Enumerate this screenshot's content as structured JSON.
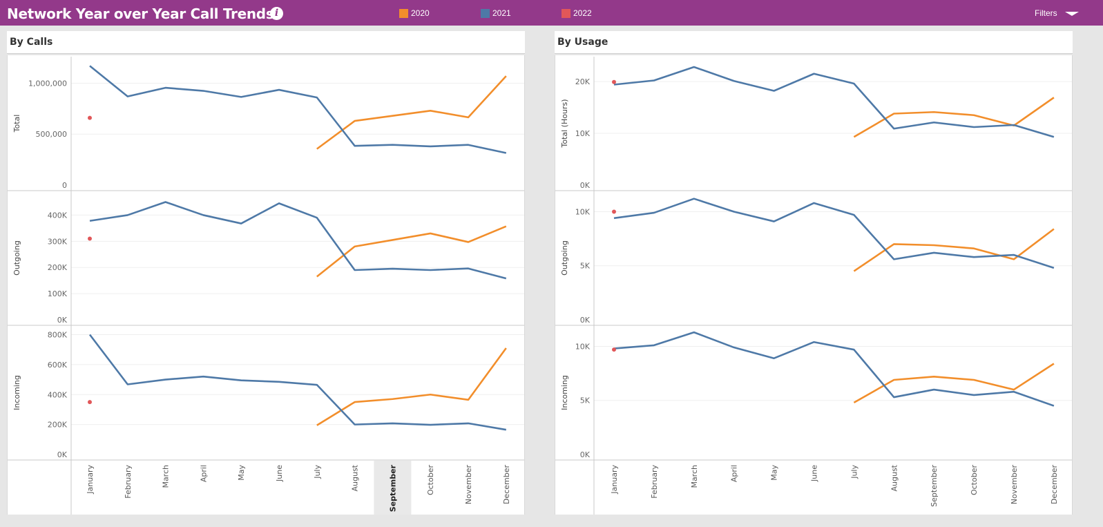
{
  "header": {
    "title": "Network Year over Year Call Trends",
    "info_icon": "info-icon",
    "filters_label": "Filters",
    "legend": [
      {
        "label": "2020",
        "color": "#f28e2b"
      },
      {
        "label": "2021",
        "color": "#4e79a7"
      },
      {
        "label": "2022",
        "color": "#e15759"
      }
    ]
  },
  "panels": [
    {
      "title": "By Calls"
    },
    {
      "title": "By Usage"
    }
  ],
  "chart_data": [
    {
      "type": "line",
      "title": "By Calls",
      "ylabel": "Total",
      "ylim": [
        0,
        1220000
      ],
      "yticks": [
        0,
        500000,
        1000000
      ],
      "ytick_labels": [
        "0",
        "500,000",
        "1,000,000"
      ],
      "categories": [
        "January",
        "February",
        "March",
        "April",
        "May",
        "June",
        "July",
        "August",
        "September",
        "October",
        "November",
        "December"
      ],
      "series": [
        {
          "name": "2020",
          "values": [
            null,
            null,
            null,
            null,
            null,
            null,
            355000,
            630000,
            680000,
            730000,
            665000,
            1070000
          ]
        },
        {
          "name": "2021",
          "values": [
            1170000,
            870000,
            955000,
            925000,
            865000,
            935000,
            860000,
            385000,
            395000,
            380000,
            395000,
            315000
          ]
        },
        {
          "name": "2022",
          "values": [
            660000,
            null,
            null,
            null,
            null,
            null,
            null,
            null,
            null,
            null,
            null,
            null
          ]
        }
      ]
    },
    {
      "type": "line",
      "title": "By Calls",
      "ylabel": "Outgoing",
      "ylim": [
        0,
        475000
      ],
      "yticks": [
        0,
        100000,
        200000,
        300000,
        400000
      ],
      "ytick_labels": [
        "0K",
        "100K",
        "200K",
        "300K",
        "400K"
      ],
      "categories": [
        "January",
        "February",
        "March",
        "April",
        "May",
        "June",
        "July",
        "August",
        "September",
        "October",
        "November",
        "December"
      ],
      "series": [
        {
          "name": "2020",
          "values": [
            null,
            null,
            null,
            null,
            null,
            null,
            165000,
            280000,
            305000,
            330000,
            297000,
            357000
          ]
        },
        {
          "name": "2021",
          "values": [
            378000,
            400000,
            450000,
            400000,
            368000,
            445000,
            390000,
            190000,
            195000,
            190000,
            196000,
            158000
          ]
        },
        {
          "name": "2022",
          "values": [
            310000,
            null,
            null,
            null,
            null,
            null,
            null,
            null,
            null,
            null,
            null,
            null
          ]
        }
      ]
    },
    {
      "type": "line",
      "title": "By Calls",
      "ylabel": "Incoming",
      "ylim": [
        0,
        830000
      ],
      "yticks": [
        0,
        200000,
        400000,
        600000,
        800000
      ],
      "ytick_labels": [
        "0K",
        "200K",
        "400K",
        "600K",
        "800K"
      ],
      "categories": [
        "January",
        "February",
        "March",
        "April",
        "May",
        "June",
        "July",
        "August",
        "September",
        "October",
        "November",
        "December"
      ],
      "series": [
        {
          "name": "2020",
          "values": [
            null,
            null,
            null,
            null,
            null,
            null,
            195000,
            350000,
            370000,
            400000,
            365000,
            710000
          ]
        },
        {
          "name": "2021",
          "values": [
            800000,
            468000,
            500000,
            520000,
            495000,
            485000,
            465000,
            200000,
            208000,
            198000,
            208000,
            165000
          ]
        },
        {
          "name": "2022",
          "values": [
            350000,
            null,
            null,
            null,
            null,
            null,
            null,
            null,
            null,
            null,
            null,
            null
          ]
        }
      ]
    },
    {
      "type": "line",
      "title": "By Usage",
      "ylabel": "Total (Hours)",
      "ylim": [
        0,
        24000
      ],
      "yticks": [
        0,
        10000,
        20000
      ],
      "ytick_labels": [
        "0K",
        "10K",
        "20K"
      ],
      "categories": [
        "January",
        "February",
        "March",
        "April",
        "May",
        "June",
        "July",
        "August",
        "September",
        "October",
        "November",
        "December"
      ],
      "series": [
        {
          "name": "2020",
          "values": [
            null,
            null,
            null,
            null,
            null,
            null,
            9300,
            13800,
            14100,
            13500,
            11500,
            16900
          ]
        },
        {
          "name": "2021",
          "values": [
            19400,
            20200,
            22800,
            20100,
            18200,
            21500,
            19600,
            10900,
            12100,
            11200,
            11600,
            9300
          ]
        },
        {
          "name": "2022",
          "values": [
            19900,
            null,
            null,
            null,
            null,
            null,
            null,
            null,
            null,
            null,
            null,
            null
          ]
        }
      ]
    },
    {
      "type": "line",
      "title": "By Usage",
      "ylabel": "Outgoing",
      "ylim": [
        0,
        11500
      ],
      "yticks": [
        0,
        5000,
        10000
      ],
      "ytick_labels": [
        "0K",
        "5K",
        "10K"
      ],
      "categories": [
        "January",
        "February",
        "March",
        "April",
        "May",
        "June",
        "July",
        "August",
        "September",
        "October",
        "November",
        "December"
      ],
      "series": [
        {
          "name": "2020",
          "values": [
            null,
            null,
            null,
            null,
            null,
            null,
            4500,
            7000,
            6900,
            6600,
            5600,
            8400
          ]
        },
        {
          "name": "2021",
          "values": [
            9400,
            9900,
            11200,
            10000,
            9100,
            10800,
            9700,
            5600,
            6200,
            5800,
            6000,
            4800
          ]
        },
        {
          "name": "2022",
          "values": [
            10000,
            null,
            null,
            null,
            null,
            null,
            null,
            null,
            null,
            null,
            null,
            null
          ]
        }
      ]
    },
    {
      "type": "line",
      "title": "By Usage",
      "ylabel": "Incoming",
      "ylim": [
        0,
        11500
      ],
      "yticks": [
        0,
        5000,
        10000
      ],
      "ytick_labels": [
        "0K",
        "5K",
        "10K"
      ],
      "categories": [
        "January",
        "February",
        "March",
        "April",
        "May",
        "June",
        "July",
        "August",
        "September",
        "October",
        "November",
        "December"
      ],
      "series": [
        {
          "name": "2020",
          "values": [
            null,
            null,
            null,
            null,
            null,
            null,
            4800,
            6900,
            7200,
            6900,
            6000,
            8400
          ]
        },
        {
          "name": "2021",
          "values": [
            9800,
            10100,
            11300,
            9900,
            8900,
            10400,
            9700,
            5300,
            6000,
            5500,
            5800,
            4500
          ]
        },
        {
          "name": "2022",
          "values": [
            9700,
            null,
            null,
            null,
            null,
            null,
            null,
            null,
            null,
            null,
            null,
            null
          ]
        }
      ]
    }
  ]
}
